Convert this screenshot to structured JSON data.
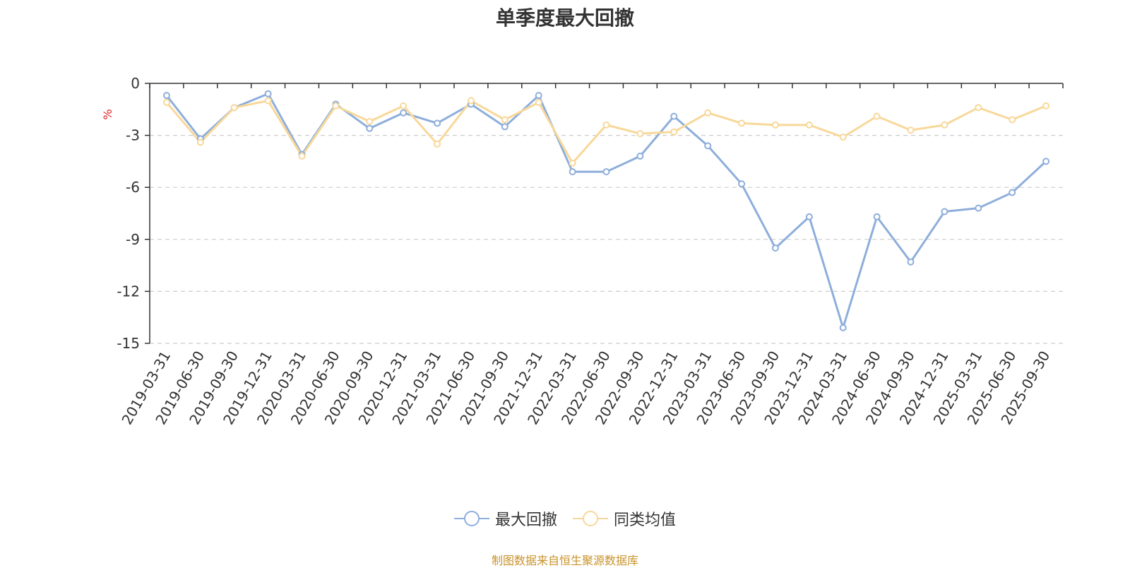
{
  "chart_data": {
    "type": "line",
    "title": "单季度最大回撤",
    "ylabel": "%",
    "xlabel": "",
    "ylim": [
      -15,
      0
    ],
    "yticks": [
      0,
      -3,
      -6,
      -9,
      -12,
      -15
    ],
    "grid": true,
    "legend_position": "bottom-center",
    "categories": [
      "2019-03-31",
      "2019-06-30",
      "2019-09-30",
      "2019-12-31",
      "2020-03-31",
      "2020-06-30",
      "2020-09-30",
      "2020-12-31",
      "2021-03-31",
      "2021-06-30",
      "2021-09-30",
      "2021-12-31",
      "2022-03-31",
      "2022-06-30",
      "2022-09-30",
      "2022-12-31",
      "2023-03-31",
      "2023-06-30",
      "2023-09-30",
      "2023-12-31",
      "2024-03-31",
      "2024-06-30",
      "2024-09-30",
      "2024-12-31",
      "2025-03-31",
      "2025-06-30",
      "2025-09-30"
    ],
    "series": [
      {
        "name": "最大回撤",
        "color": "#8eaedb",
        "values": [
          -0.7,
          -3.2,
          -1.4,
          -0.6,
          -4.1,
          -1.2,
          -2.6,
          -1.7,
          -2.3,
          -1.2,
          -2.5,
          -0.7,
          -5.1,
          -5.1,
          -4.2,
          -1.9,
          -3.6,
          -5.8,
          -9.5,
          -7.7,
          -14.1,
          -7.7,
          -10.3,
          -7.4,
          -7.2,
          -6.3,
          -4.5
        ]
      },
      {
        "name": "同类均值",
        "color": "#f8d89a",
        "values": [
          -1.1,
          -3.4,
          -1.4,
          -1.0,
          -4.2,
          -1.3,
          -2.2,
          -1.3,
          -3.5,
          -1.0,
          -2.1,
          -1.1,
          -4.6,
          -2.4,
          -2.9,
          -2.8,
          -1.7,
          -2.3,
          -2.4,
          -2.4,
          -3.1,
          -1.9,
          -2.7,
          -2.4,
          -1.4,
          -2.1,
          -1.3
        ]
      }
    ]
  },
  "source_note": "制图数据来自恒生聚源数据库",
  "colors": {
    "axis": "#333333",
    "grid": "#cccccc",
    "ylabel": "#e02020",
    "source_note": "#c8932a"
  }
}
